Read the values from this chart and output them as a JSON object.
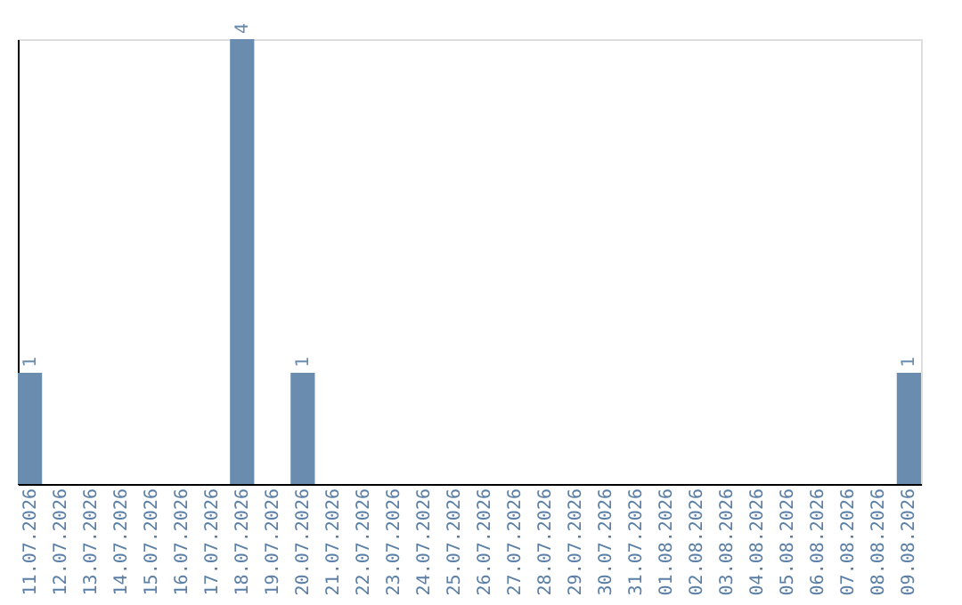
{
  "chart_data": {
    "type": "bar",
    "categories": [
      "11.07.2026",
      "12.07.2026",
      "13.07.2026",
      "14.07.2026",
      "15.07.2026",
      "16.07.2026",
      "17.07.2026",
      "18.07.2026",
      "19.07.2026",
      "20.07.2026",
      "21.07.2026",
      "22.07.2026",
      "23.07.2026",
      "24.07.2026",
      "25.07.2026",
      "26.07.2026",
      "27.07.2026",
      "28.07.2026",
      "29.07.2026",
      "30.07.2026",
      "31.07.2026",
      "01.08.2026",
      "02.08.2026",
      "03.08.2026",
      "04.08.2026",
      "05.08.2026",
      "06.08.2026",
      "07.08.2026",
      "08.08.2026",
      "09.08.2026"
    ],
    "values": [
      1,
      0,
      0,
      0,
      0,
      0,
      0,
      4,
      0,
      1,
      0,
      0,
      0,
      0,
      0,
      0,
      0,
      0,
      0,
      0,
      0,
      0,
      0,
      0,
      0,
      0,
      0,
      0,
      0,
      1
    ],
    "value_labels": [
      "1",
      null,
      null,
      null,
      null,
      null,
      null,
      "4",
      null,
      "1",
      null,
      null,
      null,
      null,
      null,
      null,
      null,
      null,
      null,
      null,
      null,
      null,
      null,
      null,
      null,
      null,
      null,
      null,
      null,
      "1"
    ],
    "color": "#6a8caf",
    "tick_labels": "x",
    "grid": false
  }
}
